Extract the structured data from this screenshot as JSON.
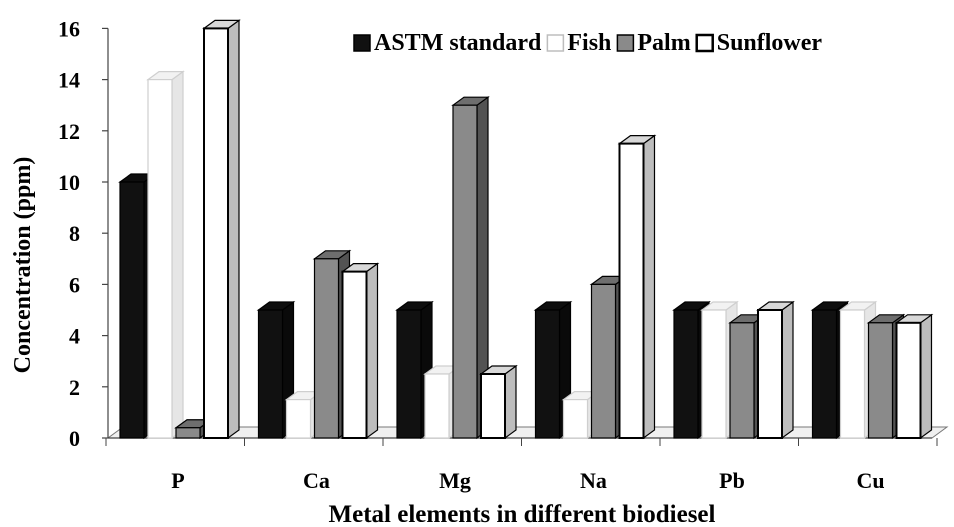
{
  "chart_data": {
    "type": "bar",
    "title": "",
    "xlabel": "Metal elements in different biodiesel",
    "ylabel": "Concentration  (ppm)",
    "categories": [
      "P",
      "Ca",
      "Mg",
      "Na",
      "Pb",
      "Cu"
    ],
    "ylim": [
      0,
      16
    ],
    "yticks": [
      0,
      2,
      4,
      6,
      8,
      10,
      12,
      14,
      16
    ],
    "grid": false,
    "legend_position": "top-right",
    "three_d": true,
    "series": [
      {
        "name": "ASTM standard",
        "color": "#111111",
        "values": [
          10,
          5,
          5,
          5,
          5,
          5
        ]
      },
      {
        "name": "Fish",
        "color": "#ffffff",
        "values": [
          14,
          1.5,
          2.5,
          1.5,
          5,
          5
        ]
      },
      {
        "name": "Palm",
        "color": "#8a8a8a",
        "values": [
          0.4,
          7,
          13,
          6,
          4.5,
          4.5
        ]
      },
      {
        "name": "Sunflower",
        "color": "#ffffff",
        "values": [
          16,
          6.5,
          2.5,
          11.5,
          5,
          4.5
        ]
      }
    ]
  }
}
